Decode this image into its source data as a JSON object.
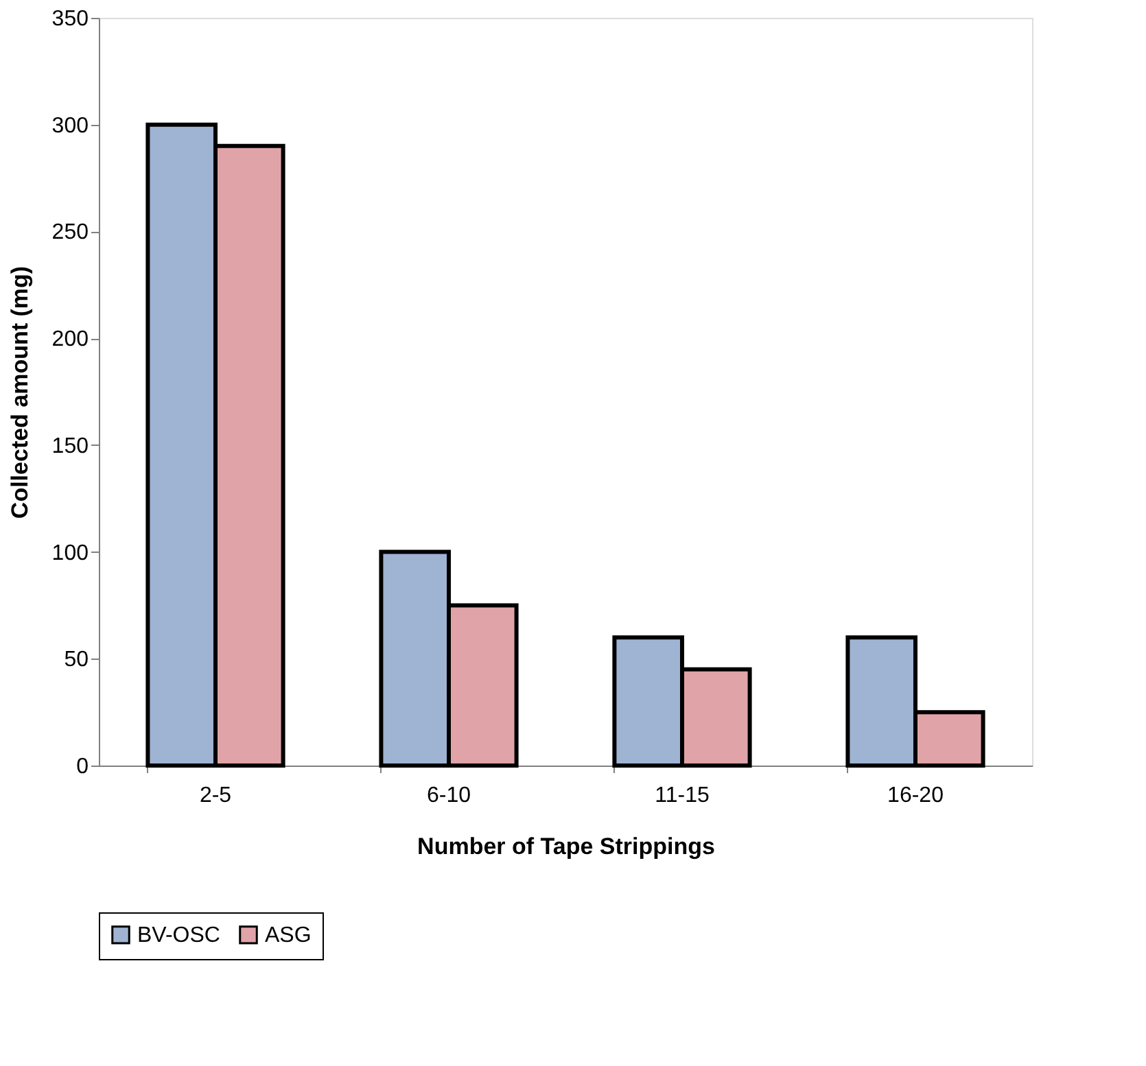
{
  "chart_data": {
    "type": "bar",
    "xlabel": "Number of Tape Strippings",
    "ylabel": "Collected amount (mg)",
    "categories": [
      "2-5",
      "6-10",
      "11-15",
      "16-20"
    ],
    "series": [
      {
        "name": "BV-OSC",
        "color": "#9fb3d3",
        "values": [
          300,
          100,
          60,
          60
        ]
      },
      {
        "name": "ASG",
        "color": "#e0a4a8",
        "values": [
          290,
          75,
          45,
          25
        ]
      }
    ],
    "ylim": [
      0,
      350
    ],
    "yticks": [
      0,
      50,
      100,
      150,
      200,
      250,
      300,
      350
    ],
    "grid": false,
    "legend": "bottom"
  }
}
